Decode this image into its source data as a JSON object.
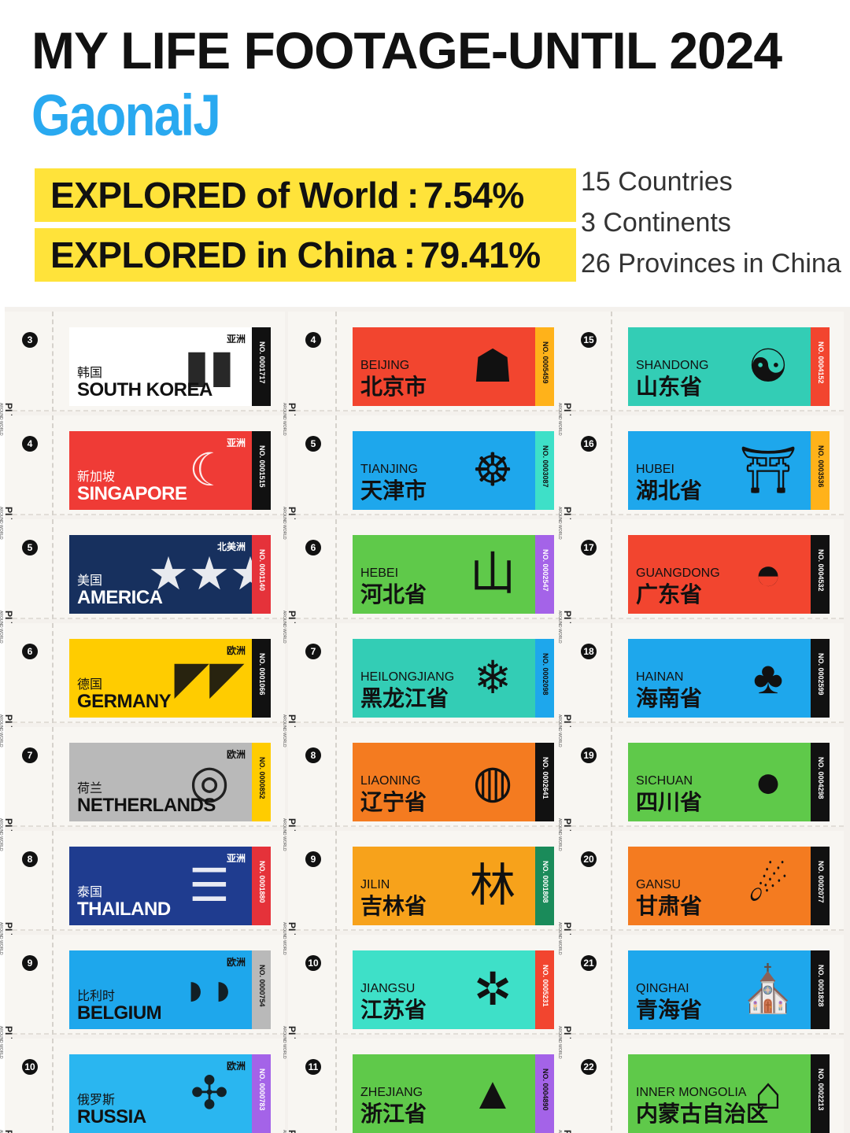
{
  "header": {
    "title": "MY LIFE FOOTAGE-UNTIL 2024",
    "author": "GaonaiJ"
  },
  "stats": [
    {
      "label": "EXPLORED of World",
      "value": "7.54%"
    },
    {
      "label": "EXPLORED in China",
      "value": "79.41%"
    }
  ],
  "summary": [
    "15 Countries",
    "3 Continents",
    "26 Provinces in China"
  ],
  "stub_label": "PI TRAVEL",
  "stub_sub": "AROUND WORLD",
  "countries": [
    {
      "stub_no": "3",
      "continent": "亚洲",
      "cn": "韩国",
      "en": "SOUTH KOREA",
      "no": "NO. 0001717",
      "bg": "#ffffff",
      "fg": "#111111",
      "strip": "#111111",
      "strip_fg": "#ffffff",
      "icon": "▮▮"
    },
    {
      "stub_no": "4",
      "continent": "亚洲",
      "cn": "新加坡",
      "en": "SINGAPORE",
      "no": "NO. 0001515",
      "bg": "#ef3b36",
      "fg": "#ffffff",
      "strip": "#111111",
      "strip_fg": "#ffffff",
      "icon": "☾"
    },
    {
      "stub_no": "5",
      "continent": "北美洲",
      "cn": "美国",
      "en": "AMERICA",
      "no": "NO. 0001140",
      "bg": "#17305e",
      "fg": "#ffffff",
      "strip": "#e5323a",
      "strip_fg": "#ffffff",
      "icon": "★★★"
    },
    {
      "stub_no": "6",
      "continent": "欧洲",
      "cn": "德国",
      "en": "GERMANY",
      "no": "NO. 0001066",
      "bg": "#ffcc00",
      "fg": "#111111",
      "strip": "#111111",
      "strip_fg": "#ffffff",
      "icon": "◤◤"
    },
    {
      "stub_no": "7",
      "continent": "欧洲",
      "cn": "荷兰",
      "en": "NETHERLANDS",
      "no": "NO. 0000852",
      "bg": "#b9b9b9",
      "fg": "#111111",
      "strip": "#ffcc00",
      "strip_fg": "#111111",
      "icon": "◎"
    },
    {
      "stub_no": "8",
      "continent": "亚洲",
      "cn": "泰国",
      "en": "THAILAND",
      "no": "NO. 0001880",
      "bg": "#1f3c8f",
      "fg": "#ffffff",
      "strip": "#e5323a",
      "strip_fg": "#ffffff",
      "icon": "☰"
    },
    {
      "stub_no": "9",
      "continent": "欧洲",
      "cn": "比利时",
      "en": "BELGIUM",
      "no": "NO. 0000754",
      "bg": "#1ea7ec",
      "fg": "#111111",
      "strip": "#b9b9b9",
      "strip_fg": "#111111",
      "icon": "◗◗"
    },
    {
      "stub_no": "10",
      "continent": "欧洲",
      "cn": "俄罗斯",
      "en": "RUSSIA",
      "no": "NO. 0000783",
      "bg": "#2ab6f0",
      "fg": "#111111",
      "strip": "#a463e8",
      "strip_fg": "#ffffff",
      "icon": "✣"
    }
  ],
  "provinces_a": [
    {
      "stub_no": "4",
      "en": "BEIJING",
      "cn": "北京市",
      "no": "NO. 0005459",
      "bg": "#f2452f",
      "fg": "#111111",
      "strip": "#ffb21a",
      "strip_fg": "#111111",
      "icon": "☗"
    },
    {
      "stub_no": "5",
      "en": "TIANJING",
      "cn": "天津市",
      "no": "NO. 0003087",
      "bg": "#1ea7ec",
      "fg": "#111111",
      "strip": "#3ee0c8",
      "strip_fg": "#111111",
      "icon": "☸"
    },
    {
      "stub_no": "6",
      "en": "HEBEI",
      "cn": "河北省",
      "no": "NO. 0002547",
      "bg": "#5fc94a",
      "fg": "#111111",
      "strip": "#a463e8",
      "strip_fg": "#ffffff",
      "icon": "山"
    },
    {
      "stub_no": "7",
      "en": "HEILONGJIANG",
      "cn": "黑龙江省",
      "no": "NO. 0002098",
      "bg": "#33cdb5",
      "fg": "#111111",
      "strip": "#1ea7ec",
      "strip_fg": "#111111",
      "icon": "❄"
    },
    {
      "stub_no": "8",
      "en": "LIAONING",
      "cn": "辽宁省",
      "no": "NO. 0002641",
      "bg": "#f47b20",
      "fg": "#111111",
      "strip": "#111111",
      "strip_fg": "#ffffff",
      "icon": "◍"
    },
    {
      "stub_no": "9",
      "en": "JILIN",
      "cn": "吉林省",
      "no": "NO. 0001808",
      "bg": "#f7a21b",
      "fg": "#111111",
      "strip": "#1a8b5a",
      "strip_fg": "#ffffff",
      "icon": "林"
    },
    {
      "stub_no": "10",
      "en": "JIANGSU",
      "cn": "江苏省",
      "no": "NO. 0005231",
      "bg": "#3ee0c8",
      "fg": "#111111",
      "strip": "#f2452f",
      "strip_fg": "#ffffff",
      "icon": "✲"
    },
    {
      "stub_no": "11",
      "en": "ZHEJIANG",
      "cn": "浙江省",
      "no": "NO. 0004890",
      "bg": "#5fc94a",
      "fg": "#111111",
      "strip": "#a463e8",
      "strip_fg": "#111111",
      "icon": "▲"
    }
  ],
  "provinces_b": [
    {
      "stub_no": "15",
      "en": "SHANDONG",
      "cn": "山东省",
      "no": "NO. 0004152",
      "bg": "#33cdb5",
      "fg": "#111111",
      "strip": "#f2452f",
      "strip_fg": "#ffffff",
      "icon": "☯"
    },
    {
      "stub_no": "16",
      "en": "HUBEI",
      "cn": "湖北省",
      "no": "NO. 0003536",
      "bg": "#1ea7ec",
      "fg": "#111111",
      "strip": "#ffb21a",
      "strip_fg": "#111111",
      "icon": "⛩"
    },
    {
      "stub_no": "17",
      "en": "GUANGDONG",
      "cn": "广东省",
      "no": "NO. 0004532",
      "bg": "#f2452f",
      "fg": "#111111",
      "strip": "#111111",
      "strip_fg": "#ffffff",
      "icon": "◓"
    },
    {
      "stub_no": "18",
      "en": "HAINAN",
      "cn": "海南省",
      "no": "NO. 0002599",
      "bg": "#1ea7ec",
      "fg": "#111111",
      "strip": "#111111",
      "strip_fg": "#ffffff",
      "icon": "♣"
    },
    {
      "stub_no": "19",
      "en": "SICHUAN",
      "cn": "四川省",
      "no": "NO. 0004298",
      "bg": "#5fc94a",
      "fg": "#111111",
      "strip": "#111111",
      "strip_fg": "#ffffff",
      "icon": "●"
    },
    {
      "stub_no": "20",
      "en": "GANSU",
      "cn": "甘肃省",
      "no": "NO. 0002077",
      "bg": "#f47b20",
      "fg": "#111111",
      "strip": "#111111",
      "strip_fg": "#ffffff",
      "icon": "☄"
    },
    {
      "stub_no": "21",
      "en": "QINGHAI",
      "cn": "青海省",
      "no": "NO. 0001828",
      "bg": "#1ea7ec",
      "fg": "#111111",
      "strip": "#111111",
      "strip_fg": "#ffffff",
      "icon": "⛪"
    },
    {
      "stub_no": "22",
      "en": "INNER MONGOLIA",
      "cn": "内蒙古自治区",
      "no": "NO. 0002213",
      "bg": "#5fc94a",
      "fg": "#111111",
      "strip": "#111111",
      "strip_fg": "#ffffff",
      "icon": "⌂"
    }
  ]
}
